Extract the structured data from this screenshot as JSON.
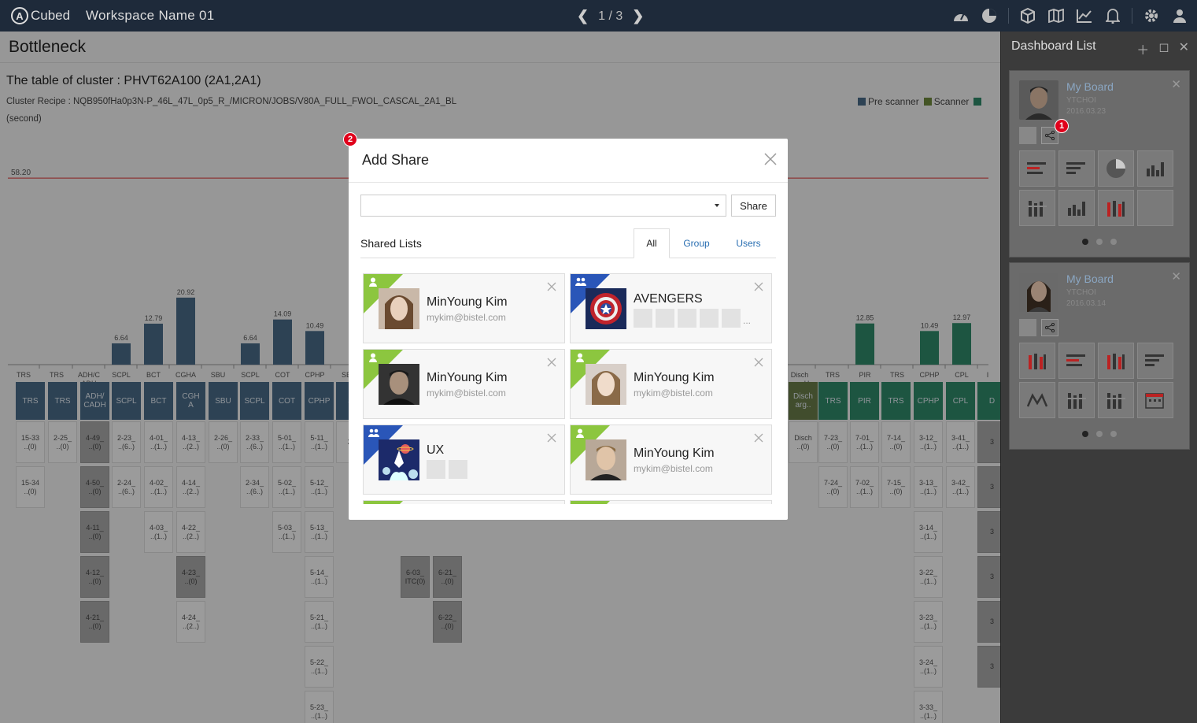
{
  "topbar": {
    "logo_letter": "A",
    "logo_text": "Cubed",
    "workspace": "Workspace Name 01",
    "pager": "1 / 3",
    "prev_icon": "chevron-left-icon",
    "next_icon": "chevron-right-icon",
    "icons": [
      "dashboard-gauge-icon",
      "pie-chart-icon",
      "cube-icon",
      "map-icon",
      "line-chart-icon",
      "bell-icon",
      "gear-icon",
      "user-icon"
    ]
  },
  "main": {
    "page_title": "Bottleneck",
    "table_title": "The table of cluster : PHVT62A100 (2A1,2A1)",
    "recipe": "Cluster Recipe : NQB950fHa0p3N-P_46L_47L_0p5_R_/MICRON/JOBS/V80A_FULL_FWOL_CASCAL_2A1_BL",
    "unit": "(second)",
    "legend": [
      {
        "label": "Pre scanner",
        "color": "#4a6b88"
      },
      {
        "label": "Scanner",
        "color": "#6f8a3c"
      },
      {
        "label": "",
        "color": "#2f8a6a"
      }
    ]
  },
  "chart_data": {
    "type": "bar",
    "threshold": {
      "label": "58.20",
      "value": 58.2
    },
    "ylim": [
      0,
      60
    ],
    "categories": [
      "TRS",
      "TRS",
      "ADH/C ADH",
      "SCPL",
      "BCT",
      "CGHA",
      "SBU",
      "SCPL",
      "COT",
      "CPHP",
      "SB",
      "Disch argeU",
      "TRS",
      "PIR",
      "TRS",
      "CPHP",
      "CPL",
      "I"
    ],
    "series": [
      {
        "values": [
          0,
          0,
          0,
          6.64,
          12.79,
          20.92,
          0,
          6.64,
          14.09,
          10.49,
          0,
          0,
          0,
          12.85,
          0,
          10.49,
          12.97,
          0
        ]
      }
    ],
    "labels": [
      "",
      "",
      "",
      "6.64",
      "12.79",
      "20.92",
      "",
      "6.64",
      "14.09",
      "10.49",
      "",
      "",
      "",
      "12.85",
      "",
      "10.49",
      "12.97",
      ""
    ]
  },
  "table": {
    "headers": [
      "TRS",
      "TRS",
      "ADH/\nCADH",
      "SCPL",
      "BCT",
      "CGH\nA",
      "SBU",
      "SCPL",
      "COT",
      "CPHP",
      "S",
      "Disch\narg..",
      "TRS",
      "PIR",
      "TRS",
      "CPHP",
      "CPL",
      "D"
    ],
    "cells": [
      [
        "15-33\n..(0)",
        "15-34\n..(0)"
      ],
      [
        "2-25_\n..(0)"
      ],
      [
        "4-49_\n..(0)",
        "4-50_\n..(0)",
        "4-11_\n..(0)",
        "4-12_\n..(0)",
        "4-21_\n..(0)"
      ],
      [
        "2-23_\n..(6..)",
        "2-24_\n..(6..)"
      ],
      [
        "4-01_\n..(1..)",
        "4-02_\n..(1..)",
        "4-03_\n..(1..)"
      ],
      [
        "4-13_\n..(2..)",
        "4-14_\n..(2..)",
        "4-22_\n..(2..)",
        "4-23_\n..(0)",
        "4-24_\n..(2..)"
      ],
      [
        "2-26_\n..(0)"
      ],
      [
        "2-33_\n..(6..)",
        "2-34_\n..(6..)"
      ],
      [
        "5-01_\n..(1..)",
        "5-02_\n..(1..)",
        "5-03_\n..(1..)"
      ],
      [
        "5-11_\n..(1..)",
        "5-12_\n..(1..)",
        "5-13_\n..(1..)",
        "5-14_\n..(1..)",
        "5-21_\n..(1..)",
        "5-22_\n..(1..)",
        "5-23_\n..(1..)"
      ],
      [
        "2-"
      ],
      [
        "Disch\n..(0)"
      ],
      [
        "7-23_\n..(0)",
        "7-24_\n..(0)"
      ],
      [
        "7-01_\n..(1..)",
        "7-02_\n..(1..)"
      ],
      [
        "7-14_\n..(0)",
        "7-15_\n..(0)"
      ],
      [
        "3-12_\n..(1..)",
        "3-13_\n..(1..)",
        "3-14_\n..(1..)",
        "3-22_\n..(1..)",
        "3-23_\n..(1..)",
        "3-24_\n..(1..)",
        "3-33_\n..(1..)"
      ],
      [
        "3-41_\n..(1..)",
        "3-42_\n..(1..)"
      ],
      [
        "3",
        "3",
        "3",
        "3",
        "3",
        "3"
      ]
    ],
    "extra": [
      {
        "text": "6-03_\nITC(0)"
      },
      {
        "text": "6-21_\n..(0)"
      },
      {
        "text": "6-22_\n..(0)"
      }
    ]
  },
  "dashboard": {
    "title": "Dashboard List",
    "boards": [
      {
        "name": "My Board",
        "user": "YTCHOI",
        "date": "2016.03.23",
        "tiles": [
          "bar-red-icon",
          "bar-h-icon",
          "pie-icon",
          "bar-v-icon",
          "stack-icon",
          "bar-v-icon",
          "bar-red-v-icon",
          "empty"
        ]
      },
      {
        "name": "My Board",
        "user": "YTCHOI",
        "date": "2016.03.14",
        "tiles": [
          "bar-red-v-icon",
          "bar-red-icon",
          "bar-red-v-icon",
          "bar-h-icon",
          "line-icon",
          "stack-icon",
          "stack-icon",
          "calendar-icon"
        ]
      }
    ],
    "badge1": "1"
  },
  "modal": {
    "badge": "2",
    "title": "Add Share",
    "share_button": "Share",
    "shared_lists": "Shared Lists",
    "tabs": [
      "All",
      "Group",
      "Users"
    ],
    "cards": [
      {
        "type": "user",
        "name": "MinYoung Kim",
        "email": "mykim@bistel.com"
      },
      {
        "type": "group",
        "name": "AVENGERS",
        "more": "..."
      },
      {
        "type": "user",
        "name": "MinYoung Kim",
        "email": "mykim@bistel.com"
      },
      {
        "type": "user",
        "name": "MinYoung Kim",
        "email": "mykim@bistel.com"
      },
      {
        "type": "group",
        "name": "UX"
      },
      {
        "type": "user",
        "name": "MinYoung Kim",
        "email": "mykim@bistel.com"
      }
    ]
  }
}
